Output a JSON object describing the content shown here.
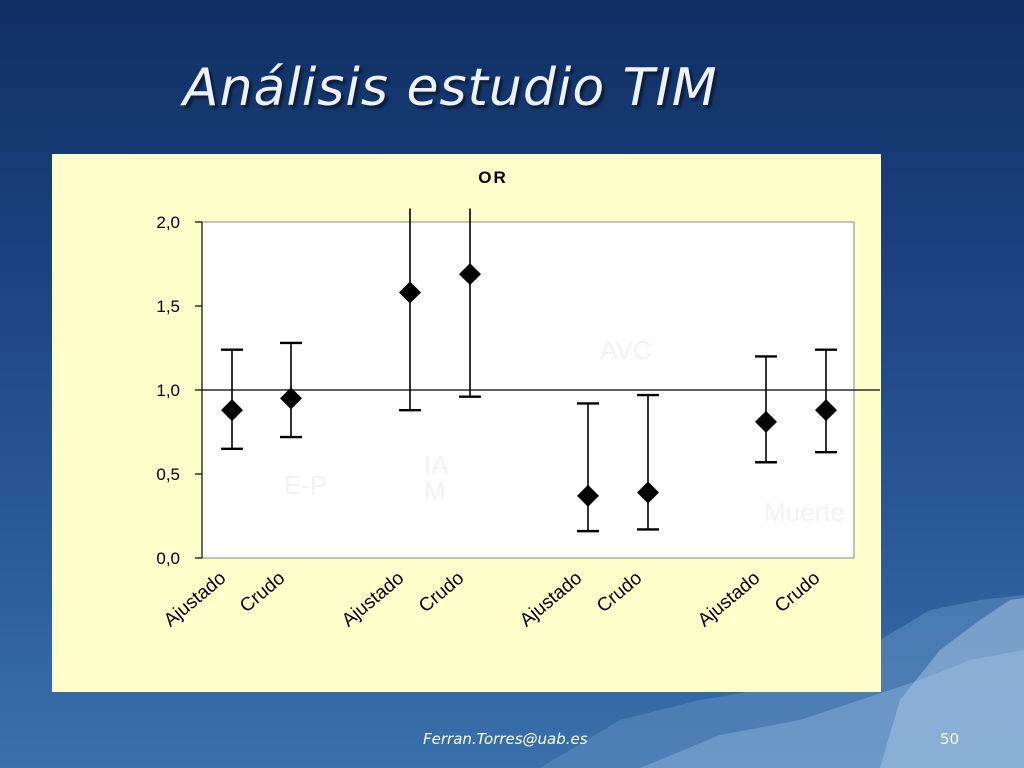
{
  "slide": {
    "title": "Análisis estudio TIM",
    "footer_email": "Ferran.Torres@uab.es",
    "page_number": "50"
  },
  "colors": {
    "chart_bg": "#ffffcc",
    "plot_bg": "#ffffff",
    "marker": "#000000",
    "watermark": "#f2f2f2"
  },
  "chart_data": {
    "type": "scatter",
    "title": "OR",
    "ylim": [
      0,
      2
    ],
    "yticks": [
      "0,0",
      "0,5",
      "1,0",
      "1,5",
      "2,0"
    ],
    "ytick_values": [
      0,
      0.5,
      1.0,
      1.5,
      2.0
    ],
    "reference_line": 1.0,
    "categories": [
      "Ajustado",
      "Crudo",
      "Ajustado",
      "Crudo",
      "Ajustado",
      "Crudo",
      "Ajustado",
      "Crudo"
    ],
    "groups": [
      "E-P",
      "IA\nM",
      "AVC",
      "Muerte"
    ],
    "points": [
      {
        "label": "Ajustado",
        "group": "E-P",
        "or": 0.88,
        "lower": 0.65,
        "upper": 1.24
      },
      {
        "label": "Crudo",
        "group": "E-P",
        "or": 0.95,
        "lower": 0.72,
        "upper": 1.28
      },
      {
        "label": "Ajustado",
        "group": "IA\nM",
        "or": 1.58,
        "lower": 0.88,
        "upper": 2.08
      },
      {
        "label": "Crudo",
        "group": "IA\nM",
        "or": 1.69,
        "lower": 0.96,
        "upper": 2.08
      },
      {
        "label": "Ajustado",
        "group": "AVC",
        "or": 0.37,
        "lower": 0.16,
        "upper": 0.92
      },
      {
        "label": "Crudo",
        "group": "AVC",
        "or": 0.39,
        "lower": 0.17,
        "upper": 0.97
      },
      {
        "label": "Ajustado",
        "group": "Muerte",
        "or": 0.81,
        "lower": 0.57,
        "upper": 1.2
      },
      {
        "label": "Crudo",
        "group": "Muerte",
        "or": 0.88,
        "lower": 0.63,
        "upper": 1.24
      }
    ],
    "grid": false,
    "legend": "none"
  }
}
